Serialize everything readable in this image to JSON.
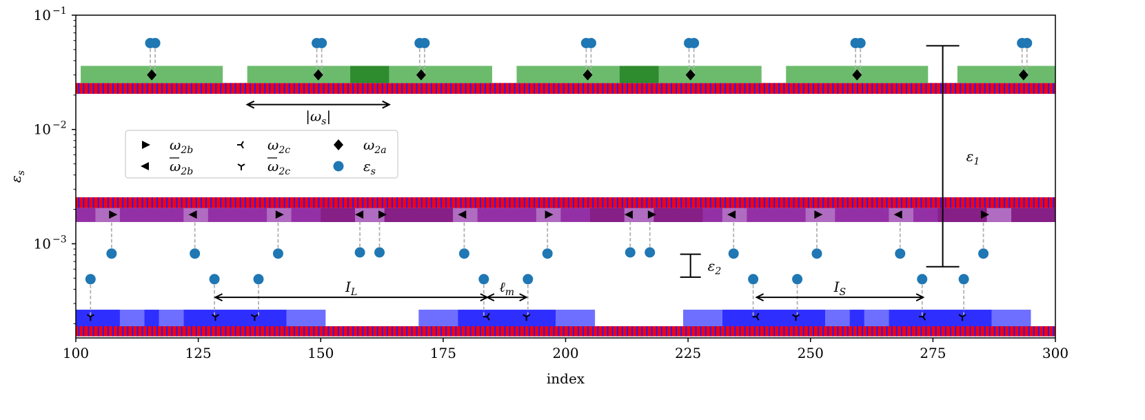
{
  "chart_data": {
    "type": "scatter",
    "title": "",
    "xlabel": "index",
    "ylabel": "ε",
    "ylabel_sub": "s",
    "xlim": [
      100,
      300
    ],
    "ylim": [
      0.00015,
      0.1
    ],
    "yscale": "log",
    "x_ticks": [
      100,
      125,
      150,
      175,
      200,
      225,
      250,
      275,
      300
    ],
    "y_ticks": [
      {
        "value": 0.1,
        "base": "10",
        "exp": "−1"
      },
      {
        "value": 0.01,
        "base": "10",
        "exp": "−2"
      },
      {
        "value": 0.001,
        "base": "10",
        "exp": "−3"
      }
    ],
    "colors": {
      "red": "#ff0000",
      "blue_stripe": "#2020ff",
      "green_light": "#6cbb6c",
      "green_dark": "#2e8b2e",
      "purple_light": "#b06cc0",
      "purple_mid": "#9430a6",
      "purple_dark": "#861f86",
      "blue_light": "#6f6fff",
      "blue_dark": "#2e2eff",
      "eps_dot": "#1f77b4",
      "dash": "#b0b0b0"
    },
    "strip_rows": [
      {
        "name": "top",
        "y_low": 0.0205,
        "y_high": 0.0255
      },
      {
        "name": "middle",
        "y_low": 0.00205,
        "y_high": 0.00255
      },
      {
        "name": "bottom",
        "y_low": 0.000155,
        "y_high": 0.00019
      }
    ],
    "green_segments": {
      "y_low": 0.0255,
      "y_high": 0.036,
      "ranges": [
        [
          101,
          130
        ],
        [
          135,
          156
        ],
        [
          156,
          164,
          "dark"
        ],
        [
          164,
          185
        ],
        [
          190,
          211
        ],
        [
          211,
          219,
          "dark"
        ],
        [
          219,
          240
        ],
        [
          245,
          274
        ],
        [
          280,
          300
        ]
      ]
    },
    "purple_band": {
      "y_low": 0.00155,
      "y_high": 0.00205,
      "light_ranges": [
        [
          104,
          109
        ],
        [
          122,
          127
        ],
        [
          139,
          144
        ],
        [
          157,
          163
        ],
        [
          177,
          182
        ],
        [
          194,
          199
        ],
        [
          212,
          218
        ],
        [
          232,
          237
        ],
        [
          249,
          255
        ],
        [
          266,
          271
        ],
        [
          286,
          291
        ]
      ],
      "dark_ranges": [
        [
          150,
          177
        ],
        [
          205,
          228
        ],
        [
          276,
          300
        ]
      ]
    },
    "blue_segments": {
      "y_low": 0.00019,
      "y_high": 0.000265,
      "light": [
        [
          109,
          114
        ],
        [
          117,
          122
        ],
        [
          143,
          151
        ],
        [
          170,
          178
        ],
        [
          198,
          206
        ],
        [
          224,
          232
        ],
        [
          253,
          258
        ],
        [
          261,
          266
        ],
        [
          287,
          295
        ]
      ],
      "dark": [
        [
          100,
          109
        ],
        [
          114,
          117
        ],
        [
          122,
          143
        ],
        [
          178,
          198
        ],
        [
          232,
          253
        ],
        [
          258,
          261
        ],
        [
          266,
          287
        ]
      ]
    },
    "series": [
      {
        "name": "ω2a",
        "marker": "diamond",
        "y": 0.03,
        "x": [
          115.5,
          149.5,
          170.5,
          204.5,
          225.5,
          259.5,
          293.5
        ]
      },
      {
        "name": "ω2b",
        "marker": "triangle-right",
        "y": 0.0018,
        "x": [
          107.5,
          141.5,
          162.5,
          196.5,
          217.5,
          251.5,
          285.5
        ]
      },
      {
        "name": "ω̄2b",
        "marker": "triangle-left",
        "y": 0.0018,
        "x": [
          124,
          158,
          179,
          213,
          234,
          268
        ]
      },
      {
        "name": "ω2c",
        "marker": "tri-left",
        "y": 0.00023,
        "x": [
          184,
          239,
          273
        ]
      },
      {
        "name": "ω̄2c",
        "marker": "tri-down",
        "y": 0.00023,
        "x": [
          103,
          128.5,
          136.5,
          192,
          247,
          281
        ]
      },
      {
        "name": "εs",
        "marker": "circle",
        "points": [
          {
            "x": 115.2,
            "y": 0.057
          },
          {
            "x": 116.2,
            "y": 0.057
          },
          {
            "x": 149.2,
            "y": 0.057
          },
          {
            "x": 150.2,
            "y": 0.057
          },
          {
            "x": 170.2,
            "y": 0.057
          },
          {
            "x": 171.2,
            "y": 0.057
          },
          {
            "x": 204.2,
            "y": 0.057
          },
          {
            "x": 205.2,
            "y": 0.057
          },
          {
            "x": 225.2,
            "y": 0.057
          },
          {
            "x": 226.2,
            "y": 0.057
          },
          {
            "x": 259.2,
            "y": 0.057
          },
          {
            "x": 260.2,
            "y": 0.057
          },
          {
            "x": 293.2,
            "y": 0.057
          },
          {
            "x": 294.2,
            "y": 0.057
          },
          {
            "x": 107.3,
            "y": 0.00082
          },
          {
            "x": 124.3,
            "y": 0.00082
          },
          {
            "x": 141.3,
            "y": 0.00082
          },
          {
            "x": 158,
            "y": 0.00084
          },
          {
            "x": 162,
            "y": 0.00084
          },
          {
            "x": 179.3,
            "y": 0.00082
          },
          {
            "x": 196.3,
            "y": 0.00082
          },
          {
            "x": 213.2,
            "y": 0.00084
          },
          {
            "x": 217.2,
            "y": 0.00084
          },
          {
            "x": 234.3,
            "y": 0.00082
          },
          {
            "x": 251.3,
            "y": 0.00082
          },
          {
            "x": 268.3,
            "y": 0.00082
          },
          {
            "x": 285.3,
            "y": 0.00082
          },
          {
            "x": 103,
            "y": 0.00049
          },
          {
            "x": 128.3,
            "y": 0.00049
          },
          {
            "x": 137.3,
            "y": 0.00049
          },
          {
            "x": 183.3,
            "y": 0.00049
          },
          {
            "x": 192.3,
            "y": 0.00049
          },
          {
            "x": 238.3,
            "y": 0.00049
          },
          {
            "x": 247.3,
            "y": 0.00049
          },
          {
            "x": 272.8,
            "y": 0.00049
          },
          {
            "x": 281.3,
            "y": 0.00049
          }
        ]
      }
    ],
    "annotations": [
      {
        "id": "omega-s",
        "type": "double-arrow",
        "x1": 135,
        "x2": 164,
        "y": 0.0165,
        "label": "|ω",
        "label_sub": "s",
        "label_end": "|"
      },
      {
        "id": "IL",
        "type": "double-arrow",
        "x1": 128.5,
        "x2": 184,
        "y": 0.00034,
        "label": "I",
        "label_sub": "L"
      },
      {
        "id": "lm",
        "type": "double-arrow",
        "x1": 184,
        "x2": 192,
        "y": 0.00034,
        "label": "ℓ",
        "label_sub": "m"
      },
      {
        "id": "IS",
        "type": "double-arrow",
        "x1": 239,
        "x2": 273,
        "y": 0.00034,
        "label": "I",
        "label_sub": "S"
      },
      {
        "id": "eps1",
        "type": "error-bar",
        "x": 277,
        "y1": 0.054,
        "y2": 0.00063,
        "label": "ε",
        "label_sub": "1"
      },
      {
        "id": "eps2",
        "type": "error-bar",
        "x": 225.5,
        "y1": 0.00081,
        "y2": 0.00051,
        "label": "ε",
        "label_sub": "2"
      }
    ],
    "legend": {
      "position": "upper-left",
      "entries": [
        {
          "marker": "triangle-right",
          "label": "ω",
          "sub": "2b",
          "bar": false
        },
        {
          "marker": "triangle-left",
          "label": "ω",
          "sub": "2b",
          "bar": true
        },
        {
          "marker": "tri-left",
          "label": "ω",
          "sub": "2c",
          "bar": false
        },
        {
          "marker": "tri-down",
          "label": "ω",
          "sub": "2c",
          "bar": true
        },
        {
          "marker": "diamond",
          "label": "ω",
          "sub": "2a",
          "bar": false
        },
        {
          "marker": "circle",
          "label": "ε",
          "sub": "s",
          "bar": false
        }
      ]
    }
  }
}
